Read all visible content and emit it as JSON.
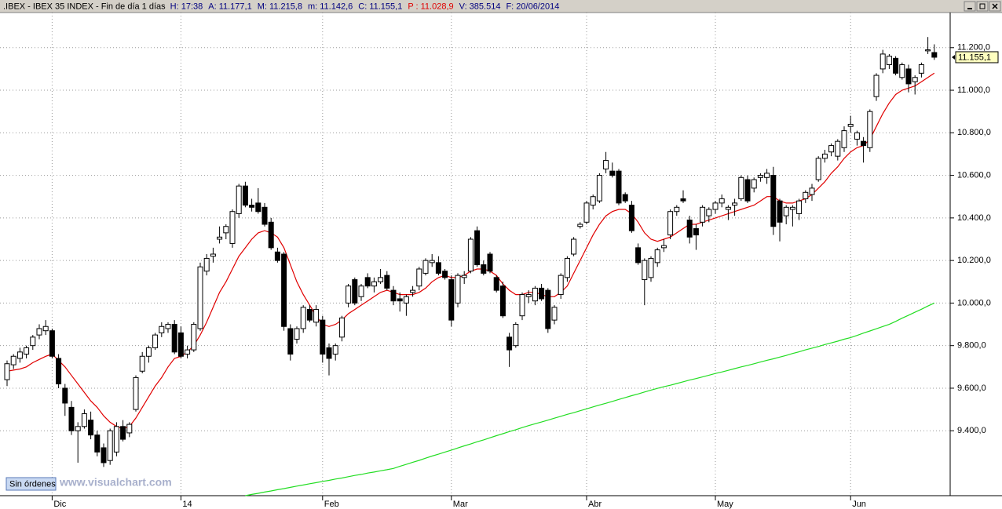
{
  "header": {
    "title": ".IBEX - IBEX 35 INDEX - Fin de día 1 días",
    "fields": [
      {
        "text": "H: 17:38",
        "color": "#000080"
      },
      {
        "text": "A: 11.177,1",
        "color": "#000080"
      },
      {
        "text": "M: 11.215,8",
        "color": "#000080"
      },
      {
        "text": "m: 11.142,6",
        "color": "#000080"
      },
      {
        "text": "C: 11.155,1",
        "color": "#000080"
      },
      {
        "text": "P : 11.028,9",
        "color": "#e00000"
      },
      {
        "text": "V: 385.514",
        "color": "#000080"
      },
      {
        "text": "F: 20/06/2014",
        "color": "#000080"
      }
    ]
  },
  "footer": {
    "status": "Sin órdenes",
    "watermark": "www.visualchart.com"
  },
  "chart_data": {
    "type": "candlestick",
    "categories": [
      null,
      null,
      null,
      null,
      null,
      null,
      null,
      "Dic",
      null,
      null,
      null,
      null,
      null,
      null,
      null,
      null,
      null,
      null,
      null,
      null,
      null,
      null,
      null,
      null,
      null,
      null,
      null,
      "14",
      null,
      null,
      null,
      null,
      null,
      null,
      null,
      null,
      null,
      null,
      null,
      null,
      null,
      null,
      null,
      null,
      null,
      null,
      null,
      null,
      null,
      "Feb",
      null,
      null,
      null,
      null,
      null,
      null,
      null,
      null,
      null,
      null,
      null,
      null,
      null,
      null,
      null,
      null,
      null,
      null,
      null,
      "Mar",
      null,
      null,
      null,
      null,
      null,
      null,
      null,
      null,
      null,
      null,
      null,
      null,
      null,
      null,
      null,
      null,
      null,
      null,
      null,
      null,
      "Abr",
      null,
      null,
      null,
      null,
      null,
      null,
      null,
      null,
      null,
      null,
      null,
      null,
      null,
      null,
      null,
      null,
      null,
      null,
      null,
      "May",
      null,
      null,
      null,
      null,
      null,
      null,
      null,
      null,
      null,
      null,
      null,
      null,
      null,
      null,
      null,
      null,
      null,
      null,
      null,
      null,
      "Jun",
      null,
      null,
      null,
      null,
      null,
      null,
      null,
      null,
      null,
      null,
      null,
      null,
      null
    ],
    "ohlc": [
      [
        9640,
        9730,
        9610,
        9715
      ],
      [
        9710,
        9760,
        9690,
        9750
      ],
      [
        9740,
        9790,
        9720,
        9770
      ],
      [
        9760,
        9800,
        9740,
        9790
      ],
      [
        9800,
        9850,
        9780,
        9840
      ],
      [
        9850,
        9900,
        9830,
        9880
      ],
      [
        9870,
        9920,
        9850,
        9890
      ],
      [
        9870,
        9880,
        9740,
        9750
      ],
      [
        9740,
        9760,
        9600,
        9620
      ],
      [
        9600,
        9620,
        9470,
        9530
      ],
      [
        9510,
        9540,
        9380,
        9400
      ],
      [
        9400,
        9440,
        9250,
        9420
      ],
      [
        9420,
        9500,
        9410,
        9480
      ],
      [
        9450,
        9490,
        9360,
        9380
      ],
      [
        9380,
        9400,
        9280,
        9300
      ],
      [
        9320,
        9340,
        9230,
        9250
      ],
      [
        9260,
        9410,
        9240,
        9400
      ],
      [
        9300,
        9440,
        9280,
        9420
      ],
      [
        9420,
        9450,
        9350,
        9360
      ],
      [
        9390,
        9440,
        9370,
        9430
      ],
      [
        9500,
        9660,
        9490,
        9650
      ],
      [
        9680,
        9770,
        9670,
        9750
      ],
      [
        9750,
        9800,
        9720,
        9790
      ],
      [
        9790,
        9860,
        9780,
        9850
      ],
      [
        9860,
        9910,
        9840,
        9890
      ],
      [
        9880,
        9910,
        9860,
        9900
      ],
      [
        9900,
        9920,
        9760,
        9770
      ],
      [
        9860,
        9890,
        9740,
        9750
      ],
      [
        9760,
        9800,
        9740,
        9780
      ],
      [
        9780,
        9910,
        9770,
        9900
      ],
      [
        9880,
        10190,
        9870,
        10170
      ],
      [
        10150,
        10230,
        10130,
        10210
      ],
      [
        10220,
        10260,
        10190,
        10230
      ],
      [
        10300,
        10360,
        10280,
        10310
      ],
      [
        10330,
        10370,
        10300,
        10360
      ],
      [
        10280,
        10440,
        10260,
        10430
      ],
      [
        10420,
        10560,
        10400,
        10550
      ],
      [
        10550,
        10570,
        10450,
        10460
      ],
      [
        10460,
        10490,
        10430,
        10450
      ],
      [
        10470,
        10540,
        10420,
        10430
      ],
      [
        10450,
        10470,
        10360,
        10370
      ],
      [
        10380,
        10400,
        10250,
        10260
      ],
      [
        10240,
        10260,
        10190,
        10200
      ],
      [
        10230,
        10240,
        9870,
        9890
      ],
      [
        9880,
        9900,
        9730,
        9760
      ],
      [
        9830,
        9890,
        9810,
        9880
      ],
      [
        9880,
        9990,
        9860,
        9980
      ],
      [
        9970,
        9990,
        9910,
        9920
      ],
      [
        9910,
        9990,
        9890,
        9970
      ],
      [
        9920,
        9940,
        9720,
        9760
      ],
      [
        9790,
        9810,
        9660,
        9740
      ],
      [
        9760,
        9810,
        9730,
        9800
      ],
      [
        9840,
        9940,
        9820,
        9930
      ],
      [
        10000,
        10090,
        9980,
        10080
      ],
      [
        10110,
        10120,
        9990,
        10000
      ],
      [
        10030,
        10090,
        10010,
        10080
      ],
      [
        10120,
        10140,
        10070,
        10080
      ],
      [
        10080,
        10120,
        10050,
        10100
      ],
      [
        10100,
        10160,
        10090,
        10120
      ],
      [
        10130,
        10150,
        10060,
        10070
      ],
      [
        10060,
        10080,
        9990,
        10010
      ],
      [
        10020,
        10050,
        9960,
        10010
      ],
      [
        10000,
        10040,
        9940,
        10030
      ],
      [
        10050,
        10080,
        10030,
        10060
      ],
      [
        10080,
        10170,
        10060,
        10160
      ],
      [
        10140,
        10210,
        10130,
        10200
      ],
      [
        10190,
        10230,
        10170,
        10200
      ],
      [
        10190,
        10220,
        10130,
        10140
      ],
      [
        10150,
        10160,
        10110,
        10120
      ],
      [
        10110,
        10130,
        9890,
        9920
      ],
      [
        10000,
        10140,
        9980,
        10130
      ],
      [
        10120,
        10150,
        10090,
        10130
      ],
      [
        10150,
        10310,
        10140,
        10300
      ],
      [
        10340,
        10360,
        10170,
        10180
      ],
      [
        10180,
        10200,
        10130,
        10140
      ],
      [
        10230,
        10240,
        10140,
        10150
      ],
      [
        10120,
        10130,
        10050,
        10060
      ],
      [
        10080,
        10100,
        9930,
        9940
      ],
      [
        9840,
        9860,
        9700,
        9780
      ],
      [
        9800,
        9910,
        9790,
        9900
      ],
      [
        9940,
        10050,
        9920,
        10040
      ],
      [
        10030,
        10060,
        10000,
        10040
      ],
      [
        10010,
        10080,
        9990,
        10070
      ],
      [
        10070,
        10090,
        10010,
        10020
      ],
      [
        10060,
        10070,
        9860,
        9880
      ],
      [
        9920,
        9990,
        9900,
        9980
      ],
      [
        10040,
        10140,
        10020,
        10130
      ],
      [
        10120,
        10220,
        10100,
        10210
      ],
      [
        10230,
        10310,
        10220,
        10300
      ],
      [
        10360,
        10380,
        10350,
        10370
      ],
      [
        10380,
        10480,
        10370,
        10470
      ],
      [
        10460,
        10510,
        10440,
        10500
      ],
      [
        10480,
        10610,
        10470,
        10600
      ],
      [
        10630,
        10710,
        10610,
        10670
      ],
      [
        10620,
        10660,
        10590,
        10600
      ],
      [
        10620,
        10630,
        10460,
        10470
      ],
      [
        10510,
        10520,
        10470,
        10480
      ],
      [
        10460,
        10480,
        10330,
        10340
      ],
      [
        10260,
        10280,
        10180,
        10190
      ],
      [
        10110,
        10210,
        9990,
        10200
      ],
      [
        10120,
        10220,
        10100,
        10210
      ],
      [
        10190,
        10260,
        10170,
        10250
      ],
      [
        10260,
        10300,
        10240,
        10270
      ],
      [
        10320,
        10440,
        10300,
        10430
      ],
      [
        10430,
        10460,
        10410,
        10450
      ],
      [
        10490,
        10530,
        10470,
        10480
      ],
      [
        10390,
        10410,
        10280,
        10310
      ],
      [
        10350,
        10370,
        10250,
        10320
      ],
      [
        10380,
        10460,
        10360,
        10450
      ],
      [
        10410,
        10450,
        10380,
        10440
      ],
      [
        10440,
        10480,
        10420,
        10470
      ],
      [
        10470,
        10510,
        10450,
        10490
      ],
      [
        10440,
        10460,
        10390,
        10450
      ],
      [
        10460,
        10490,
        10410,
        10470
      ],
      [
        10490,
        10600,
        10480,
        10590
      ],
      [
        10580,
        10600,
        10470,
        10480
      ],
      [
        10540,
        10590,
        10520,
        10580
      ],
      [
        10590,
        10610,
        10570,
        10600
      ],
      [
        10590,
        10630,
        10560,
        10610
      ],
      [
        10600,
        10640,
        10320,
        10360
      ],
      [
        10480,
        10490,
        10290,
        10380
      ],
      [
        10410,
        10460,
        10370,
        10450
      ],
      [
        10440,
        10460,
        10360,
        10450
      ],
      [
        10420,
        10490,
        10390,
        10480
      ],
      [
        10490,
        10530,
        10470,
        10520
      ],
      [
        10510,
        10560,
        10480,
        10540
      ],
      [
        10580,
        10690,
        10570,
        10680
      ],
      [
        10680,
        10720,
        10660,
        10700
      ],
      [
        10710,
        10750,
        10690,
        10740
      ],
      [
        10690,
        10770,
        10670,
        10760
      ],
      [
        10730,
        10830,
        10710,
        10810
      ],
      [
        10830,
        10880,
        10800,
        10840
      ],
      [
        10770,
        10810,
        10740,
        10800
      ],
      [
        10760,
        10780,
        10660,
        10740
      ],
      [
        10730,
        10910,
        10710,
        10900
      ],
      [
        10970,
        11080,
        10950,
        11070
      ],
      [
        11100,
        11190,
        11080,
        11170
      ],
      [
        11120,
        11170,
        11100,
        11160
      ],
      [
        11150,
        11160,
        11070,
        11080
      ],
      [
        11060,
        11130,
        11050,
        11120
      ],
      [
        11100,
        11120,
        10990,
        11030
      ],
      [
        11040,
        11070,
        10980,
        11060
      ],
      [
        11080,
        11130,
        11060,
        11120
      ],
      [
        11185,
        11250,
        11170,
        11190
      ],
      [
        11177.1,
        11215.8,
        11142.6,
        11155.1
      ]
    ],
    "up_color": "#ffffff",
    "down_color": "#000000",
    "overlays": [
      {
        "color": "#e00000",
        "values": [
          9680,
          9685,
          9690,
          9700,
          9720,
          9735,
          9750,
          9760,
          9730,
          9700,
          9660,
          9620,
          9580,
          9540,
          9510,
          9470,
          9440,
          9420,
          9410,
          9420,
          9460,
          9510,
          9560,
          9610,
          9650,
          9700,
          9740,
          9750,
          9770,
          9800,
          9850,
          9910,
          9980,
          10050,
          10100,
          10160,
          10220,
          10260,
          10300,
          10330,
          10340,
          10330,
          10310,
          10260,
          10180,
          10100,
          10040,
          9990,
          9940,
          9900,
          9890,
          9900,
          9920,
          9950,
          9970,
          9990,
          10010,
          10030,
          10050,
          10060,
          10050,
          10040,
          10040,
          10040,
          10050,
          10070,
          10100,
          10120,
          10130,
          10120,
          10120,
          10130,
          10150,
          10160,
          10160,
          10150,
          10130,
          10090,
          10060,
          10040,
          10040,
          10050,
          10050,
          10040,
          10030,
          10030,
          10050,
          10080,
          10140,
          10200,
          10260,
          10320,
          10370,
          10410,
          10430,
          10440,
          10440,
          10420,
          10380,
          10330,
          10300,
          10290,
          10300,
          10310,
          10330,
          10350,
          10370,
          10370,
          10380,
          10390,
          10400,
          10410,
          10420,
          10430,
          10440,
          10450,
          10460,
          10480,
          10500,
          10500,
          10480,
          10470,
          10470,
          10480,
          10490,
          10510,
          10540,
          10570,
          10610,
          10640,
          10680,
          10710,
          10730,
          10740,
          10770,
          10830,
          10890,
          10940,
          10980,
          11000,
          11010,
          11020,
          11040,
          11060,
          11080
        ]
      },
      {
        "color": "#22dd22",
        "values": [
          null,
          null,
          null,
          null,
          null,
          null,
          null,
          null,
          null,
          null,
          null,
          null,
          null,
          null,
          null,
          null,
          null,
          null,
          null,
          null,
          null,
          null,
          null,
          null,
          null,
          null,
          null,
          null,
          null,
          null,
          null,
          null,
          null,
          null,
          null,
          null,
          null,
          9095,
          9101,
          9106,
          9112,
          9117,
          9123,
          9128,
          9134,
          9140,
          9145,
          9151,
          9156,
          9162,
          9167,
          9173,
          9178,
          9184,
          9190,
          9195,
          9201,
          9206,
          9212,
          9217,
          9223,
          9233,
          9242,
          9252,
          9261,
          9271,
          9281,
          9290,
          9300,
          9309,
          9319,
          9329,
          9338,
          9348,
          9357,
          9367,
          9377,
          9386,
          9396,
          9405,
          9415,
          9424,
          9433,
          9441,
          9450,
          9459,
          9468,
          9477,
          9485,
          9494,
          9503,
          9512,
          9521,
          9529,
          9538,
          9547,
          9556,
          9565,
          9573,
          9582,
          9591,
          9599,
          9607,
          9614,
          9622,
          9630,
          9638,
          9645,
          9653,
          9661,
          9669,
          9676,
          9684,
          9692,
          9700,
          9707,
          9715,
          9723,
          9731,
          9738,
          9746,
          9754,
          9763,
          9771,
          9780,
          9788,
          9796,
          9805,
          9813,
          9821,
          9830,
          9838,
          9848,
          9859,
          9869,
          9879,
          9890,
          9900,
          9914,
          9929,
          9943,
          9957,
          9971,
          9986,
          10000
        ]
      }
    ],
    "last_price_label": "11.155,1",
    "ylim": [
      9095,
      11365
    ],
    "yticks": [
      {
        "value": 9400,
        "label": "9.400,0"
      },
      {
        "value": 9600,
        "label": "9.600,0"
      },
      {
        "value": 9800,
        "label": "9.800,0"
      },
      {
        "value": 10000,
        "label": "10.000,0"
      },
      {
        "value": 10200,
        "label": "10.200,0"
      },
      {
        "value": 10400,
        "label": "10.400,0"
      },
      {
        "value": 10600,
        "label": "10.600,0"
      },
      {
        "value": 10800,
        "label": "10.800,0"
      },
      {
        "value": 11000,
        "label": "11.000,0"
      },
      {
        "value": 11200,
        "label": "11.200,0"
      }
    ],
    "grid": true
  }
}
